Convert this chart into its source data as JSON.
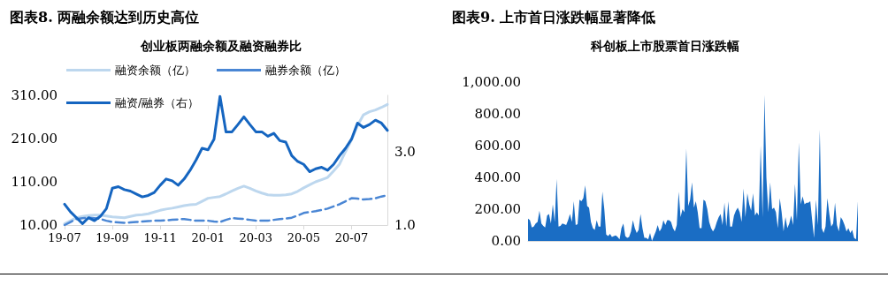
{
  "chart_data": [
    {
      "type": "line",
      "title": "图表8. 两融余额达到历史高位",
      "subtitle": "创业板两融余额及融资融券比",
      "categories": [
        "19-07",
        null,
        null,
        null,
        null,
        null,
        null,
        null,
        "19-09",
        null,
        null,
        null,
        null,
        null,
        null,
        null,
        "19-11",
        null,
        null,
        null,
        null,
        null,
        null,
        null,
        "20-01",
        null,
        null,
        null,
        null,
        null,
        null,
        null,
        "20-03",
        null,
        null,
        null,
        null,
        null,
        null,
        null,
        "20-05",
        null,
        null,
        null,
        null,
        null,
        null,
        null,
        "20-07",
        null,
        null,
        null,
        null,
        null,
        null
      ],
      "series": [
        {
          "name": "融资余额（亿）",
          "color": "#bdd7ee",
          "line_style": "solid",
          "values": [
            13,
            20,
            27,
            30,
            32,
            33,
            33,
            31,
            29,
            28,
            27,
            30,
            33,
            34,
            36,
            40,
            44,
            47,
            49,
            52,
            55,
            57,
            58,
            65,
            72,
            74,
            76,
            82,
            89,
            95,
            100,
            95,
            89,
            84,
            80,
            79,
            79,
            80,
            82,
            88,
            96,
            103,
            110,
            115,
            120,
            135,
            151,
            180,
            207,
            240,
            265,
            272,
            276,
            282,
            289
          ]
        },
        {
          "name": "融券余额（亿）",
          "color": "#4a86d4",
          "line_style": "dashed",
          "values": [
            10,
            17,
            24,
            26,
            27,
            26,
            24,
            20,
            17,
            16,
            15,
            16,
            17,
            18,
            19,
            20,
            20,
            21,
            22,
            23,
            24,
            22,
            20,
            20,
            20,
            18,
            17,
            22,
            26,
            25,
            24,
            22,
            20,
            20,
            20,
            22,
            24,
            25,
            27,
            32,
            38,
            40,
            42,
            45,
            48,
            53,
            58,
            65,
            72,
            71,
            69,
            70,
            72,
            76,
            79
          ]
        },
        {
          "name": "融资/融券（右）",
          "color": "#1565c0",
          "line_style": "solid",
          "axis": "y2",
          "values": [
            1.57,
            1.36,
            1.2,
            1.04,
            1.2,
            1.12,
            1.24,
            1.45,
            2.01,
            2.05,
            1.97,
            1.93,
            1.85,
            1.77,
            1.81,
            1.89,
            2.09,
            2.26,
            2.21,
            2.09,
            2.26,
            2.5,
            2.78,
            3.1,
            3.06,
            3.35,
            4.52,
            3.55,
            3.55,
            3.75,
            3.96,
            3.75,
            3.55,
            3.55,
            3.43,
            3.51,
            3.31,
            3.27,
            2.9,
            2.74,
            2.66,
            2.46,
            2.54,
            2.58,
            2.5,
            2.66,
            2.9,
            3.1,
            3.35,
            3.79,
            3.67,
            3.75,
            3.87,
            3.79,
            3.59
          ]
        }
      ],
      "ylim": [
        10,
        310
      ],
      "yticks": [
        {
          "value": 10,
          "label": "10.00"
        },
        {
          "value": 110,
          "label": "110.00"
        },
        {
          "value": 210,
          "label": "210.00"
        },
        {
          "value": 310,
          "label": "310.00"
        }
      ],
      "y2lim": [
        1,
        4.55
      ],
      "y2ticks": [
        {
          "value": 1,
          "label": "1.0"
        },
        {
          "value": 3,
          "label": "3.0"
        }
      ],
      "legend": "top",
      "grid": false,
      "marker": "none"
    },
    {
      "type": "area",
      "title": "图表9. 上市首日涨跌幅显著降低",
      "subtitle": "科创板上市股票首日涨跌幅",
      "categories": [
        null,
        null,
        null,
        null,
        null,
        null,
        null,
        null,
        null,
        null,
        null,
        null,
        null,
        null,
        null,
        null,
        null,
        null,
        null,
        null,
        null,
        null,
        null,
        null,
        null,
        null,
        null,
        null,
        null,
        null,
        null,
        null,
        null,
        null,
        null,
        null,
        null,
        null,
        null,
        null,
        null,
        null,
        null,
        null,
        null,
        null,
        null,
        null,
        null,
        null,
        null,
        null,
        null,
        null,
        null,
        null,
        null,
        null,
        null,
        null,
        null,
        null,
        null,
        null,
        null,
        null,
        null,
        null,
        null,
        null,
        null,
        null,
        null,
        null,
        null,
        null,
        null,
        null,
        null,
        null,
        null,
        null,
        null,
        null,
        null,
        null,
        null,
        null,
        null,
        null,
        null,
        null,
        null,
        null,
        null,
        null,
        null,
        null,
        null,
        null,
        null,
        null,
        null,
        null,
        null,
        null,
        null,
        null,
        null,
        null,
        null,
        null,
        null,
        null,
        null,
        null,
        null,
        null,
        null,
        null,
        null,
        null,
        null,
        null,
        null,
        null,
        null,
        null,
        null,
        null,
        null,
        null,
        null,
        null,
        null,
        null,
        null,
        null,
        null,
        null,
        null,
        null,
        null,
        null,
        null,
        null,
        null,
        null,
        null,
        null,
        null,
        null,
        null,
        null,
        null,
        null,
        null,
        null,
        null,
        null,
        null,
        null,
        null,
        null,
        null,
        null,
        null,
        null,
        null,
        null,
        null,
        null,
        null,
        null
      ],
      "color": "#1a6dc4",
      "values": [
        140,
        130,
        85,
        90,
        110,
        120,
        190,
        110,
        95,
        85,
        160,
        170,
        110,
        230,
        120,
        390,
        90,
        95,
        110,
        105,
        100,
        130,
        170,
        120,
        250,
        100,
        105,
        260,
        250,
        270,
        350,
        220,
        210,
        120,
        80,
        70,
        130,
        90,
        90,
        310,
        200,
        40,
        30,
        45,
        25,
        30,
        35,
        25,
        10,
        80,
        110,
        30,
        20,
        25,
        60,
        130,
        80,
        50,
        70,
        170,
        80,
        20,
        20,
        10,
        50,
        0,
        30,
        60,
        100,
        60,
        80,
        130,
        100,
        130,
        130,
        120,
        80,
        60,
        100,
        310,
        150,
        200,
        180,
        580,
        220,
        260,
        370,
        210,
        250,
        180,
        80,
        80,
        260,
        250,
        200,
        120,
        80,
        60,
        80,
        120,
        150,
        170,
        100,
        240,
        90,
        250,
        90,
        90,
        160,
        190,
        210,
        180,
        120,
        330,
        150,
        300,
        230,
        190,
        300,
        160,
        180,
        160,
        600,
        150,
        920,
        400,
        180,
        370,
        200,
        210,
        180,
        80,
        270,
        180,
        60,
        150,
        80,
        110,
        160,
        100,
        360,
        130,
        620,
        230,
        280,
        230,
        240,
        240,
        250,
        130,
        20,
        260,
        100,
        700,
        80,
        50,
        90,
        270,
        170,
        90,
        110,
        240,
        100,
        60,
        150,
        130,
        100,
        60,
        80,
        50,
        70,
        20,
        10,
        250
      ],
      "ylim": [
        0,
        1000
      ],
      "yticks": [
        {
          "value": 0,
          "label": "0.00"
        },
        {
          "value": 200,
          "label": "200.00"
        },
        {
          "value": 400,
          "label": "400.00"
        },
        {
          "value": 600,
          "label": "600.00"
        },
        {
          "value": 800,
          "label": "800.00"
        },
        {
          "value": 1000,
          "label": "1,000.00"
        }
      ],
      "grid": false,
      "tick_labels": "y",
      "marker": "none"
    }
  ]
}
